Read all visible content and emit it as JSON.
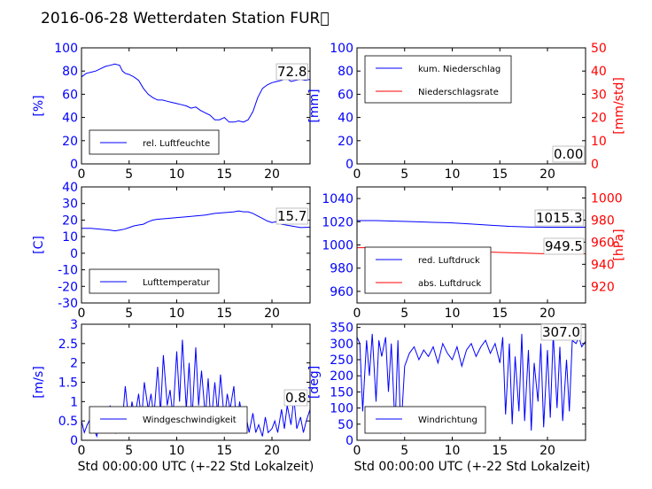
{
  "title": "2016-06-28 Wetterdaten Station FUR\u0000",
  "xlabel": "Std 00:00:00 UTC (+-22 Std Lokalzeit)",
  "colors": {
    "primary": "#0000ff",
    "secondary": "#ff0000",
    "axis": "#000000"
  },
  "xticks": [
    0,
    5,
    10,
    15,
    20
  ],
  "chart_data": [
    {
      "id": "humidity",
      "type": "line",
      "xlim": [
        0,
        24
      ],
      "ylim": [
        0,
        100
      ],
      "yticks": [
        0,
        20,
        40,
        60,
        80,
        100
      ],
      "ylabel": "[%]",
      "legend": {
        "placement": "lower-left",
        "entries": [
          "rel. Luftfeuchte"
        ]
      },
      "value_label": "72.8",
      "series": [
        {
          "name": "rel. Luftfeuchte",
          "color": "#0000ff",
          "x": [
            0,
            0.5,
            1,
            1.5,
            2,
            2.5,
            3,
            3.5,
            4,
            4.3,
            4.6,
            5,
            5.5,
            6,
            6.5,
            7,
            7.5,
            8,
            8.5,
            9,
            9.5,
            10,
            10.5,
            11,
            11.5,
            12,
            12.5,
            13,
            13.5,
            14,
            14.5,
            15,
            15.5,
            16,
            16.5,
            17,
            17.5,
            18,
            18.5,
            19,
            19.5,
            20,
            20.5,
            21,
            21.5,
            22,
            22.5,
            23,
            23.5,
            24
          ],
          "y": [
            75,
            78,
            79,
            80,
            82,
            84,
            85,
            86,
            85,
            80,
            78,
            77,
            75,
            72,
            65,
            60,
            57,
            55,
            55,
            54,
            53,
            52,
            51,
            50,
            48,
            49,
            46,
            44,
            42,
            38,
            38,
            40,
            36,
            36,
            37,
            36,
            38,
            45,
            57,
            65,
            68,
            70,
            71,
            72,
            74,
            71,
            72,
            73,
            72,
            72.8
          ]
        }
      ]
    },
    {
      "id": "precipitation",
      "type": "line",
      "xlim": [
        0,
        24
      ],
      "ylim": [
        0,
        100
      ],
      "yticks": [
        0,
        20,
        40,
        60,
        80,
        100
      ],
      "ylabel": "[mm]",
      "y2lim": [
        0,
        50
      ],
      "y2ticks": [
        0,
        10,
        20,
        30,
        40,
        50
      ],
      "y2label": "[mm/std]",
      "legend": {
        "placement": "upper-left",
        "entries": [
          "kum. Niederschlag",
          "Niederschlagsrate"
        ]
      },
      "value_label": "0.00",
      "series": [
        {
          "name": "kum. Niederschlag",
          "color": "#0000ff",
          "axis": "y",
          "x": [
            0,
            24
          ],
          "y": [
            0,
            0
          ]
        },
        {
          "name": "Niederschlagsrate",
          "color": "#ff0000",
          "axis": "y2",
          "x": [
            0,
            24
          ],
          "y": [
            0,
            0
          ]
        }
      ]
    },
    {
      "id": "temperature",
      "type": "line",
      "xlim": [
        0,
        24
      ],
      "ylim": [
        -30,
        40
      ],
      "yticks": [
        -30,
        -20,
        -10,
        0,
        10,
        20,
        30,
        40
      ],
      "ylabel": "[C]",
      "legend": {
        "placement": "lower-left",
        "entries": [
          "Lufttemperatur"
        ]
      },
      "value_label": "15.7",
      "series": [
        {
          "name": "Lufttemperatur",
          "color": "#0000ff",
          "x": [
            0,
            1,
            2,
            3,
            3.5,
            4,
            4.5,
            5,
            5.5,
            6,
            6.5,
            7,
            7.5,
            8,
            9,
            10,
            11,
            12,
            13,
            14,
            15,
            16,
            16.5,
            17,
            17.5,
            18,
            18.5,
            19,
            19.5,
            20,
            20.5,
            21,
            22,
            23,
            24
          ],
          "y": [
            15,
            15,
            14.5,
            14,
            13.5,
            14,
            14.5,
            15.5,
            16.5,
            17,
            17.5,
            19,
            20,
            20.5,
            21,
            21.5,
            22,
            22.5,
            23,
            24,
            24.5,
            25,
            25.5,
            25,
            25,
            24,
            22.5,
            21,
            19.5,
            18.5,
            19,
            17.5,
            16.5,
            15.5,
            15.7
          ]
        }
      ]
    },
    {
      "id": "pressure",
      "type": "line",
      "xlim": [
        0,
        24
      ],
      "ylim": [
        950,
        1050
      ],
      "yticks": [
        960,
        980,
        1000,
        1020,
        1040
      ],
      "ylabel": "",
      "y2lim": [
        905,
        1010
      ],
      "y2ticks": [
        920,
        940,
        960,
        980,
        1000
      ],
      "y2label": "[hPa]",
      "legend": {
        "placement": "lower-left",
        "entries": [
          "red. Luftdruck",
          "abs. Luftdruck"
        ]
      },
      "value_label": "1015.3",
      "value_label2": "949.5",
      "series": [
        {
          "name": "red. Luftdruck",
          "color": "#0000ff",
          "axis": "y",
          "x": [
            0,
            2,
            4,
            6,
            8,
            10,
            12,
            14,
            16,
            18,
            20,
            22,
            24
          ],
          "y": [
            1021,
            1021,
            1020.5,
            1020,
            1019.5,
            1019,
            1018,
            1017,
            1016,
            1015.5,
            1015.3,
            1015.3,
            1015.3
          ]
        },
        {
          "name": "abs. Luftdruck",
          "color": "#ff0000",
          "axis": "y2",
          "x": [
            0,
            2,
            4,
            6,
            8,
            10,
            12,
            14,
            16,
            18,
            20,
            22,
            24
          ],
          "y": [
            955,
            955,
            954.5,
            954,
            953.5,
            953,
            952,
            951,
            950.5,
            950,
            949.5,
            949.5,
            949.5
          ]
        }
      ]
    },
    {
      "id": "windspeed",
      "type": "line",
      "xlim": [
        0,
        24
      ],
      "ylim": [
        0,
        3.0
      ],
      "yticks": [
        0,
        0.5,
        1.0,
        1.5,
        2.0,
        2.5,
        3.0
      ],
      "ylabel": "[m/s]",
      "legend": {
        "placement": "lower-left",
        "entries": [
          "Windgeschwindigkeit"
        ]
      },
      "value_label": "0.8",
      "series": [
        {
          "name": "Windgeschwindigkeit",
          "color": "#0000ff",
          "x": [
            0,
            0.3,
            0.6,
            1,
            1.3,
            1.6,
            2,
            2.3,
            2.6,
            3,
            3.3,
            3.6,
            4,
            4.3,
            4.6,
            5,
            5.3,
            5.6,
            6,
            6.3,
            6.6,
            7,
            7.3,
            7.6,
            8,
            8.3,
            8.6,
            9,
            9.3,
            9.6,
            10,
            10.3,
            10.6,
            11,
            11.3,
            11.6,
            12,
            12.3,
            12.6,
            13,
            13.3,
            13.6,
            14,
            14.3,
            14.6,
            15,
            15.3,
            15.6,
            16,
            16.3,
            16.6,
            17,
            17.3,
            17.6,
            18,
            18.3,
            18.6,
            19,
            19.3,
            19.6,
            20,
            20.3,
            20.6,
            21,
            21.3,
            21.6,
            22,
            22.3,
            22.6,
            23,
            23.3,
            23.6,
            24
          ],
          "y": [
            0.5,
            0.2,
            0.4,
            0.6,
            0.3,
            0.1,
            0.5,
            0.7,
            0.3,
            0.9,
            0.4,
            0.2,
            0.8,
            0.5,
            1.4,
            0.4,
            1.0,
            0.6,
            1.2,
            0.5,
            1.5,
            0.8,
            1.2,
            0.6,
            1.9,
            0.7,
            2.2,
            0.9,
            1.3,
            0.6,
            2.3,
            1.0,
            2.6,
            0.8,
            2.0,
            0.5,
            2.4,
            0.9,
            1.8,
            0.6,
            1.6,
            0.4,
            1.5,
            0.7,
            1.7,
            0.5,
            1.2,
            0.8,
            1.4,
            0.3,
            1.0,
            0.4,
            0.6,
            0.2,
            0.7,
            0.2,
            0.4,
            0.1,
            0.6,
            0.2,
            0.3,
            0.5,
            0.2,
            0.8,
            0.3,
            0.9,
            0.4,
            1.1,
            0.3,
            0.6,
            0.2,
            0.5,
            0.8
          ]
        }
      ]
    },
    {
      "id": "winddirection",
      "type": "line",
      "xlim": [
        0,
        24
      ],
      "ylim": [
        0,
        360
      ],
      "yticks": [
        0,
        50,
        100,
        150,
        200,
        250,
        300,
        350
      ],
      "ylabel": "[deg]",
      "legend": {
        "placement": "lower-left",
        "entries": [
          "Windrichtung"
        ]
      },
      "value_label": "307.0",
      "series": [
        {
          "name": "Windrichtung",
          "color": "#0000ff",
          "x": [
            0,
            0.3,
            0.6,
            1,
            1.3,
            1.6,
            2,
            2.3,
            2.6,
            3,
            3.3,
            3.6,
            4,
            4.3,
            4.6,
            5,
            5.5,
            6,
            6.5,
            7,
            7.5,
            8,
            8.5,
            9,
            9.5,
            10,
            10.5,
            11,
            11.5,
            12,
            12.5,
            13,
            13.5,
            14,
            14.5,
            15,
            15.3,
            15.6,
            16,
            16.3,
            16.6,
            17,
            17.3,
            17.6,
            18,
            18.3,
            18.6,
            19,
            19.3,
            19.6,
            20,
            20.3,
            20.6,
            21,
            21.3,
            21.6,
            22,
            22.3,
            22.6,
            23,
            23.3,
            23.6,
            24
          ],
          "y": [
            320,
            300,
            90,
            310,
            200,
            330,
            120,
            310,
            260,
            320,
            150,
            300,
            40,
            310,
            20,
            230,
            270,
            290,
            250,
            280,
            260,
            290,
            240,
            300,
            270,
            250,
            290,
            230,
            280,
            300,
            260,
            290,
            310,
            270,
            300,
            240,
            320,
            80,
            300,
            50,
            260,
            90,
            330,
            60,
            280,
            30,
            240,
            120,
            300,
            40,
            280,
            70,
            330,
            100,
            290,
            60,
            250,
            90,
            310,
            300,
            320,
            290,
            307
          ]
        }
      ]
    }
  ]
}
